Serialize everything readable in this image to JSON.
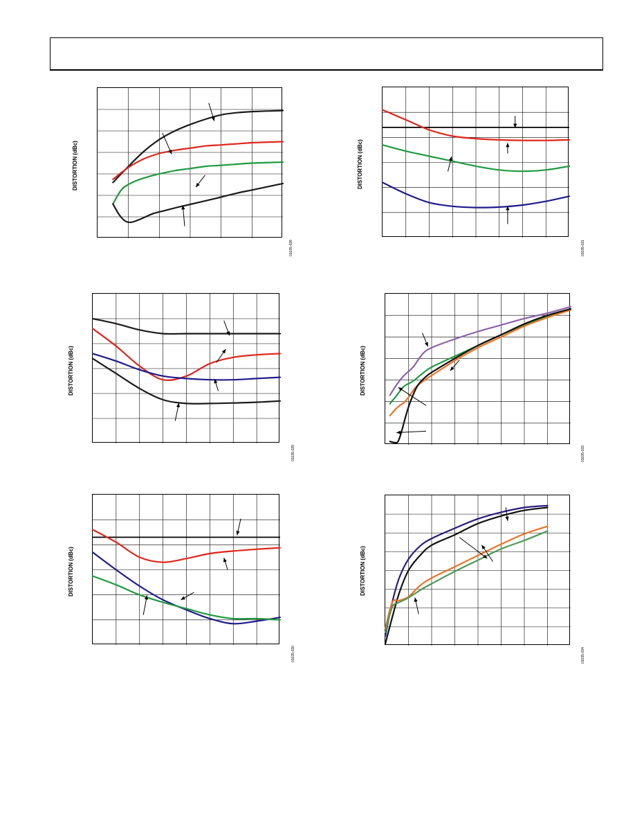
{
  "page": {
    "header_text": ""
  },
  "chart_data": [
    {
      "id": "fig-428",
      "type": "line",
      "ylabel": "DISTORTION (dBc)",
      "figure_code": "01035-028",
      "grid": {
        "cols": 6,
        "rows": 7
      },
      "xlim": [
        0,
        6
      ],
      "ylim": [
        0,
        7
      ],
      "series": [
        {
          "color": "#1a1a1a",
          "x": [
            0.5,
            1.0,
            1.5,
            2.0,
            2.5,
            3.0,
            3.5,
            4.0,
            4.5,
            5.0,
            6.0
          ],
          "y": [
            2.6,
            3.35,
            4.05,
            4.6,
            5.0,
            5.3,
            5.55,
            5.75,
            5.85,
            5.9,
            5.95
          ]
        },
        {
          "color": "#e0251b",
          "x": [
            0.5,
            1.0,
            1.5,
            2.0,
            2.5,
            3.0,
            3.5,
            4.0,
            4.5,
            5.0,
            6.0
          ],
          "y": [
            2.75,
            3.3,
            3.7,
            3.95,
            4.1,
            4.2,
            4.3,
            4.35,
            4.4,
            4.45,
            4.5
          ]
        },
        {
          "color": "#1e9a3f",
          "x": [
            0.5,
            0.8,
            1.2,
            1.6,
            2.0,
            2.5,
            3.0,
            3.5,
            4.0,
            4.5,
            5.0,
            6.0
          ],
          "y": [
            1.6,
            2.3,
            2.65,
            2.85,
            3.0,
            3.15,
            3.25,
            3.35,
            3.4,
            3.45,
            3.5,
            3.55
          ]
        },
        {
          "color": "#1a1a1a",
          "x": [
            0.5,
            0.7,
            0.9,
            1.1,
            1.4,
            1.8,
            2.2,
            2.6,
            3.0,
            3.5,
            4.0,
            4.5,
            5.0,
            5.5,
            6.0
          ],
          "y": [
            1.6,
            1.1,
            0.8,
            0.75,
            0.9,
            1.15,
            1.3,
            1.45,
            1.58,
            1.75,
            1.92,
            2.1,
            2.25,
            2.4,
            2.55
          ]
        }
      ]
    },
    {
      "id": "fig-431",
      "type": "line",
      "ylabel": "DISTORTION (dBc)",
      "figure_code": "01035-031",
      "grid": {
        "cols": 8,
        "rows": 6
      },
      "xlim": [
        0,
        8
      ],
      "ylim": [
        0,
        6
      ],
      "hline": {
        "y": 4.4,
        "color": "#000000"
      },
      "series": [
        {
          "color": "#e0251b",
          "x": [
            0,
            1,
            2,
            3,
            4,
            5,
            6,
            7,
            8
          ],
          "y": [
            5.1,
            4.7,
            4.3,
            4.05,
            3.95,
            3.9,
            3.88,
            3.88,
            3.9
          ]
        },
        {
          "color": "#1e9a3f",
          "x": [
            0,
            1,
            2,
            3,
            4,
            5,
            6,
            7,
            8
          ],
          "y": [
            3.7,
            3.45,
            3.25,
            3.05,
            2.85,
            2.7,
            2.65,
            2.7,
            2.85
          ]
        },
        {
          "color": "#1e1a8a",
          "x": [
            0,
            1,
            2,
            3,
            4,
            5,
            6,
            7,
            8
          ],
          "y": [
            2.2,
            1.75,
            1.4,
            1.25,
            1.2,
            1.22,
            1.3,
            1.45,
            1.65
          ]
        }
      ]
    },
    {
      "id": "fig-429",
      "type": "line",
      "ylabel": "DISTORTION (dBc)",
      "figure_code": "01035-029",
      "grid": {
        "cols": 8,
        "rows": 6
      },
      "xlim": [
        0,
        8
      ],
      "ylim": [
        0,
        6
      ],
      "series": [
        {
          "color": "#1a1a1a",
          "x": [
            0,
            1,
            2,
            3,
            4,
            5,
            6,
            7,
            8
          ],
          "y": [
            5.0,
            4.8,
            4.55,
            4.4,
            4.4,
            4.4,
            4.4,
            4.4,
            4.4
          ]
        },
        {
          "color": "#e0251b",
          "x": [
            0,
            1,
            2,
            3,
            4,
            5,
            6,
            7,
            8
          ],
          "y": [
            4.6,
            3.9,
            3.1,
            2.55,
            2.7,
            3.2,
            3.45,
            3.55,
            3.6
          ]
        },
        {
          "color": "#1e1a8a",
          "x": [
            0,
            1,
            2,
            3,
            4,
            5,
            6,
            7,
            8
          ],
          "y": [
            3.6,
            3.3,
            2.95,
            2.7,
            2.6,
            2.55,
            2.55,
            2.6,
            2.65
          ]
        },
        {
          "color": "#1a1a1a",
          "x": [
            0,
            1,
            2,
            3,
            4,
            5,
            6,
            7,
            8
          ],
          "y": [
            3.4,
            2.8,
            2.2,
            1.75,
            1.6,
            1.6,
            1.62,
            1.65,
            1.7
          ]
        }
      ]
    },
    {
      "id": "fig-433",
      "type": "line",
      "ylabel": "DISTORTION (dBc)",
      "figure_code": "01035-033",
      "grid": {
        "cols": 8,
        "rows": 7
      },
      "xlim": [
        0,
        8
      ],
      "ylim": [
        0,
        7
      ],
      "series": [
        {
          "color": "#8e62aa",
          "x": [
            0.2,
            0.5,
            0.8,
            1.2,
            1.6,
            2.0,
            3.0,
            4.0,
            5.0,
            6.0,
            7.0,
            8.0
          ],
          "y": [
            2.3,
            2.8,
            3.2,
            3.6,
            4.2,
            4.5,
            4.9,
            5.25,
            5.55,
            5.85,
            6.1,
            6.4
          ]
        },
        {
          "color": "#1e9a3f",
          "x": [
            0.2,
            0.5,
            0.8,
            1.2,
            1.6,
            2.0,
            3.0,
            4.0,
            5.0,
            6.0,
            7.0,
            8.0
          ],
          "y": [
            1.9,
            2.3,
            2.7,
            2.95,
            3.3,
            3.6,
            4.1,
            4.6,
            5.1,
            5.55,
            5.95,
            6.25
          ]
        },
        {
          "color": "#f07020",
          "x": [
            0.2,
            0.4,
            0.6,
            0.8,
            1.0,
            1.3,
            1.7,
            2.2,
            3.0,
            4.0,
            5.0,
            6.0,
            7.0,
            8.0
          ],
          "y": [
            1.35,
            1.6,
            1.8,
            1.95,
            2.2,
            2.65,
            3.0,
            3.35,
            3.9,
            4.5,
            5.0,
            5.5,
            5.9,
            6.25
          ]
        },
        {
          "color": "#111111",
          "x": [
            0.2,
            0.4,
            0.55,
            0.7,
            0.9,
            1.1,
            1.4,
            1.8,
            2.3,
            3.0,
            4.0,
            5.0,
            6.0,
            7.0,
            8.0
          ],
          "y": [
            0.15,
            0.1,
            0.15,
            0.6,
            1.4,
            2.05,
            2.75,
            3.2,
            3.55,
            4.0,
            4.6,
            5.1,
            5.6,
            6.0,
            6.3
          ]
        }
      ]
    },
    {
      "id": "fig-430",
      "type": "line",
      "ylabel": "DISTORTION (dBc)",
      "figure_code": "01035-030",
      "grid": {
        "cols": 8,
        "rows": 6
      },
      "xlim": [
        0,
        8
      ],
      "ylim": [
        0,
        6
      ],
      "hline": {
        "y": 4.3,
        "color": "#000000"
      },
      "series": [
        {
          "color": "#e0251b",
          "x": [
            0,
            1,
            2,
            3,
            4,
            5,
            6,
            7,
            8
          ],
          "y": [
            4.6,
            4.1,
            3.5,
            3.3,
            3.45,
            3.65,
            3.75,
            3.82,
            3.88
          ]
        },
        {
          "color": "#1e1a8a",
          "x": [
            0,
            1,
            2,
            3,
            4,
            5,
            6,
            7,
            8
          ],
          "y": [
            3.7,
            3.0,
            2.35,
            1.8,
            1.4,
            1.05,
            0.85,
            0.95,
            1.1
          ]
        },
        {
          "color": "#1e9a3f",
          "x": [
            0,
            1,
            2,
            3,
            4,
            5,
            6,
            7,
            8
          ],
          "y": [
            2.75,
            2.4,
            2.0,
            1.7,
            1.45,
            1.2,
            1.05,
            1.05,
            1.0
          ]
        }
      ]
    },
    {
      "id": "fig-434",
      "type": "line",
      "ylabel": "DISTORTION (dBc)",
      "figure_code": "01035-034",
      "grid": {
        "cols": 8,
        "rows": 8
      },
      "xlim": [
        0,
        8
      ],
      "ylim": [
        0,
        8
      ],
      "series": [
        {
          "color": "#2a1a80",
          "x": [
            0,
            0.3,
            0.6,
            1.0,
            1.5,
            2.0,
            3.0,
            4.0,
            5.0,
            6.0,
            7.0
          ],
          "y": [
            0.5,
            2.3,
            3.6,
            4.6,
            5.3,
            5.7,
            6.25,
            6.75,
            7.1,
            7.35,
            7.45
          ]
        },
        {
          "color": "#111111",
          "x": [
            0,
            0.3,
            0.6,
            1.0,
            1.5,
            2.0,
            3.0,
            4.0,
            5.0,
            6.0,
            7.0
          ],
          "y": [
            0.1,
            1.5,
            2.8,
            4.0,
            4.8,
            5.35,
            5.9,
            6.5,
            6.9,
            7.2,
            7.35
          ]
        },
        {
          "color": "#f07020",
          "x": [
            0,
            0.3,
            0.6,
            1.0,
            1.5,
            2.0,
            3.0,
            4.0,
            5.0,
            6.0,
            7.0
          ],
          "y": [
            0.9,
            2.3,
            2.4,
            2.6,
            3.2,
            3.6,
            4.2,
            4.8,
            5.4,
            5.95,
            6.35
          ]
        },
        {
          "color": "#4c9a58",
          "x": [
            0,
            0.3,
            0.6,
            1.0,
            1.5,
            2.0,
            3.0,
            4.0,
            5.0,
            6.0,
            7.0
          ],
          "y": [
            0.7,
            2.05,
            2.3,
            2.55,
            2.95,
            3.3,
            3.95,
            4.55,
            5.15,
            5.6,
            6.1
          ]
        }
      ]
    }
  ]
}
